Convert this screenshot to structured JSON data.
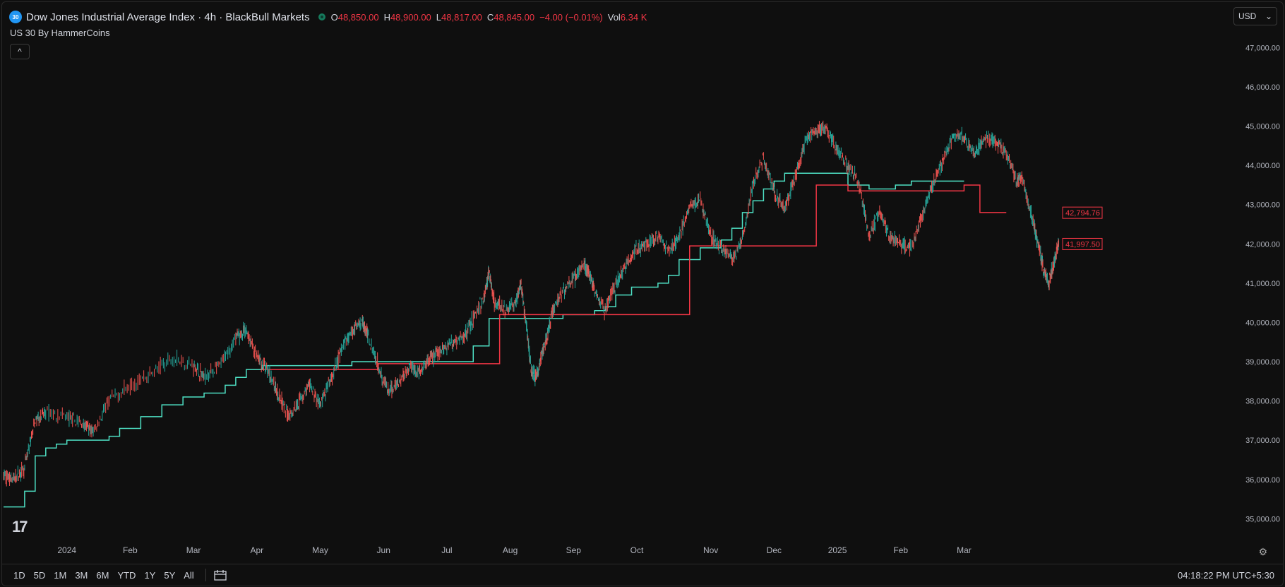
{
  "header": {
    "symbol_badge": "30",
    "title": "Dow Jones Industrial Average Index · 4h · BlackBull Markets",
    "ohlc": [
      {
        "label": "O",
        "value": "48,850.00"
      },
      {
        "label": "H",
        "value": "48,900.00"
      },
      {
        "label": "L",
        "value": "48,817.00"
      },
      {
        "label": "C",
        "value": "48,845.00"
      },
      {
        "label": "",
        "value": "−4.00 (−0.01%)"
      },
      {
        "label": "Vol",
        "value": "6.34 K"
      }
    ],
    "indicator": "US 30 By HammerCoins",
    "collapse_glyph": "^",
    "currency": "USD",
    "currency_glyph": "⌄"
  },
  "bottom": {
    "ranges": [
      "1D",
      "5D",
      "1M",
      "3M",
      "6M",
      "YTD",
      "1Y",
      "5Y",
      "All"
    ],
    "clock": "04:18:22 PM UTC+5:30",
    "calendar_icon": "calendar-icon",
    "settings_icon": "gear-icon",
    "settings_glyph": "⚙"
  },
  "logo_text": "17",
  "colors": {
    "up": "#26a69a",
    "down": "#ef5350",
    "support": "#4ee0c4",
    "resistance": "#f23645",
    "label_red": "#f23645"
  },
  "chart_data": {
    "type": "line",
    "ylim": [
      35000,
      47000
    ],
    "y_ticks": [
      "35,000.00",
      "36,000.00",
      "37,000.00",
      "38,000.00",
      "39,000.00",
      "40,000.00",
      "41,000.00",
      "42,000.00",
      "43,000.00",
      "44,000.00",
      "45,000.00",
      "46,000.00",
      "47,000.00"
    ],
    "x_ticks": [
      "2024",
      "Feb",
      "Mar",
      "Apr",
      "May",
      "Jun",
      "Jul",
      "Aug",
      "Sep",
      "Oct",
      "Nov",
      "Dec",
      "2025",
      "Feb",
      "Mar"
    ],
    "x_tick_pos": [
      0.06,
      0.12,
      0.18,
      0.24,
      0.3,
      0.36,
      0.42,
      0.48,
      0.54,
      0.6,
      0.67,
      0.73,
      0.79,
      0.85,
      0.91
    ],
    "price": [
      [
        0.0,
        36100
      ],
      [
        0.01,
        36000
      ],
      [
        0.02,
        36300
      ],
      [
        0.03,
        37500
      ],
      [
        0.04,
        37700
      ],
      [
        0.06,
        37600
      ],
      [
        0.075,
        37400
      ],
      [
        0.085,
        37200
      ],
      [
        0.1,
        38000
      ],
      [
        0.12,
        38400
      ],
      [
        0.14,
        38700
      ],
      [
        0.16,
        39100
      ],
      [
        0.18,
        38900
      ],
      [
        0.19,
        38600
      ],
      [
        0.205,
        38900
      ],
      [
        0.22,
        39600
      ],
      [
        0.23,
        39800
      ],
      [
        0.24,
        39100
      ],
      [
        0.25,
        38800
      ],
      [
        0.26,
        38200
      ],
      [
        0.27,
        37600
      ],
      [
        0.28,
        38000
      ],
      [
        0.29,
        38400
      ],
      [
        0.3,
        37900
      ],
      [
        0.31,
        38500
      ],
      [
        0.32,
        39300
      ],
      [
        0.33,
        39800
      ],
      [
        0.34,
        40000
      ],
      [
        0.345,
        39700
      ],
      [
        0.355,
        38900
      ],
      [
        0.365,
        38200
      ],
      [
        0.375,
        38500
      ],
      [
        0.385,
        38900
      ],
      [
        0.395,
        38700
      ],
      [
        0.405,
        39100
      ],
      [
        0.415,
        39300
      ],
      [
        0.425,
        39500
      ],
      [
        0.435,
        39600
      ],
      [
        0.445,
        40100
      ],
      [
        0.455,
        40600
      ],
      [
        0.46,
        41300
      ],
      [
        0.465,
        40500
      ],
      [
        0.475,
        40300
      ],
      [
        0.485,
        40500
      ],
      [
        0.49,
        41000
      ],
      [
        0.495,
        40000
      ],
      [
        0.5,
        38800
      ],
      [
        0.505,
        38600
      ],
      [
        0.51,
        39200
      ],
      [
        0.515,
        39600
      ],
      [
        0.52,
        40300
      ],
      [
        0.53,
        40800
      ],
      [
        0.54,
        41100
      ],
      [
        0.55,
        41500
      ],
      [
        0.555,
        41200
      ],
      [
        0.56,
        40800
      ],
      [
        0.57,
        40300
      ],
      [
        0.58,
        41000
      ],
      [
        0.59,
        41500
      ],
      [
        0.6,
        41900
      ],
      [
        0.61,
        42000
      ],
      [
        0.62,
        42200
      ],
      [
        0.63,
        41800
      ],
      [
        0.64,
        42200
      ],
      [
        0.65,
        42900
      ],
      [
        0.66,
        43100
      ],
      [
        0.67,
        42200
      ],
      [
        0.68,
        41900
      ],
      [
        0.69,
        41600
      ],
      [
        0.7,
        42100
      ],
      [
        0.71,
        43500
      ],
      [
        0.72,
        44200
      ],
      [
        0.73,
        43300
      ],
      [
        0.74,
        42900
      ],
      [
        0.75,
        43700
      ],
      [
        0.76,
        44600
      ],
      [
        0.77,
        44900
      ],
      [
        0.78,
        44900
      ],
      [
        0.79,
        44400
      ],
      [
        0.8,
        44000
      ],
      [
        0.81,
        43600
      ],
      [
        0.82,
        42200
      ],
      [
        0.83,
        42800
      ],
      [
        0.84,
        42200
      ],
      [
        0.85,
        42000
      ],
      [
        0.86,
        41900
      ],
      [
        0.87,
        42700
      ],
      [
        0.88,
        43500
      ],
      [
        0.89,
        44100
      ],
      [
        0.9,
        44800
      ],
      [
        0.91,
        44700
      ],
      [
        0.92,
        44300
      ],
      [
        0.93,
        44700
      ],
      [
        0.94,
        44600
      ],
      [
        0.95,
        44300
      ],
      [
        0.96,
        43600
      ],
      [
        0.965,
        43700
      ],
      [
        0.975,
        42600
      ],
      [
        0.98,
        42000
      ],
      [
        0.985,
        41400
      ],
      [
        0.99,
        41000
      ],
      [
        0.995,
        41500
      ],
      [
        1.0,
        42100
      ]
    ],
    "support_steps": [
      [
        0.0,
        35300
      ],
      [
        0.02,
        35700
      ],
      [
        0.03,
        36600
      ],
      [
        0.04,
        36800
      ],
      [
        0.05,
        36900
      ],
      [
        0.06,
        37000
      ],
      [
        0.1,
        37100
      ],
      [
        0.11,
        37300
      ],
      [
        0.13,
        37600
      ],
      [
        0.15,
        37900
      ],
      [
        0.17,
        38100
      ],
      [
        0.19,
        38200
      ],
      [
        0.21,
        38400
      ],
      [
        0.22,
        38600
      ],
      [
        0.23,
        38800
      ],
      [
        0.245,
        38900
      ],
      [
        0.31,
        38900
      ],
      [
        0.33,
        39000
      ],
      [
        0.35,
        39000
      ],
      [
        0.41,
        39000
      ],
      [
        0.445,
        39400
      ],
      [
        0.46,
        40100
      ],
      [
        0.515,
        40100
      ],
      [
        0.53,
        40200
      ],
      [
        0.56,
        40300
      ],
      [
        0.57,
        40400
      ],
      [
        0.58,
        40700
      ],
      [
        0.595,
        40900
      ],
      [
        0.62,
        41000
      ],
      [
        0.63,
        41200
      ],
      [
        0.64,
        41600
      ],
      [
        0.66,
        41900
      ],
      [
        0.68,
        42100
      ],
      [
        0.69,
        42400
      ],
      [
        0.7,
        42800
      ],
      [
        0.71,
        43100
      ],
      [
        0.72,
        43400
      ],
      [
        0.73,
        43600
      ],
      [
        0.74,
        43800
      ],
      [
        0.76,
        43800
      ],
      [
        0.8,
        43500
      ],
      [
        0.82,
        43400
      ],
      [
        0.83,
        43400
      ],
      [
        0.845,
        43500
      ],
      [
        0.86,
        43600
      ],
      [
        0.88,
        43600
      ],
      [
        0.9,
        43600
      ],
      [
        0.91,
        43600
      ]
    ],
    "resistance_steps": [
      [
        0.245,
        38800
      ],
      [
        0.355,
        38800
      ],
      [
        0.355,
        38950
      ],
      [
        0.47,
        38950
      ],
      [
        0.47,
        40200
      ],
      [
        0.5,
        40200
      ],
      [
        0.65,
        40200
      ],
      [
        0.65,
        41950
      ],
      [
        0.77,
        41950
      ],
      [
        0.77,
        43500
      ],
      [
        0.8,
        43500
      ],
      [
        0.8,
        43350
      ],
      [
        0.91,
        43350
      ],
      [
        0.91,
        43500
      ],
      [
        0.925,
        43500
      ],
      [
        0.925,
        42800
      ],
      [
        0.95,
        42800
      ]
    ],
    "price_labels": [
      "42,794.76",
      "41,997.50"
    ],
    "price_label_values": [
      42794.76,
      41997.5
    ]
  }
}
